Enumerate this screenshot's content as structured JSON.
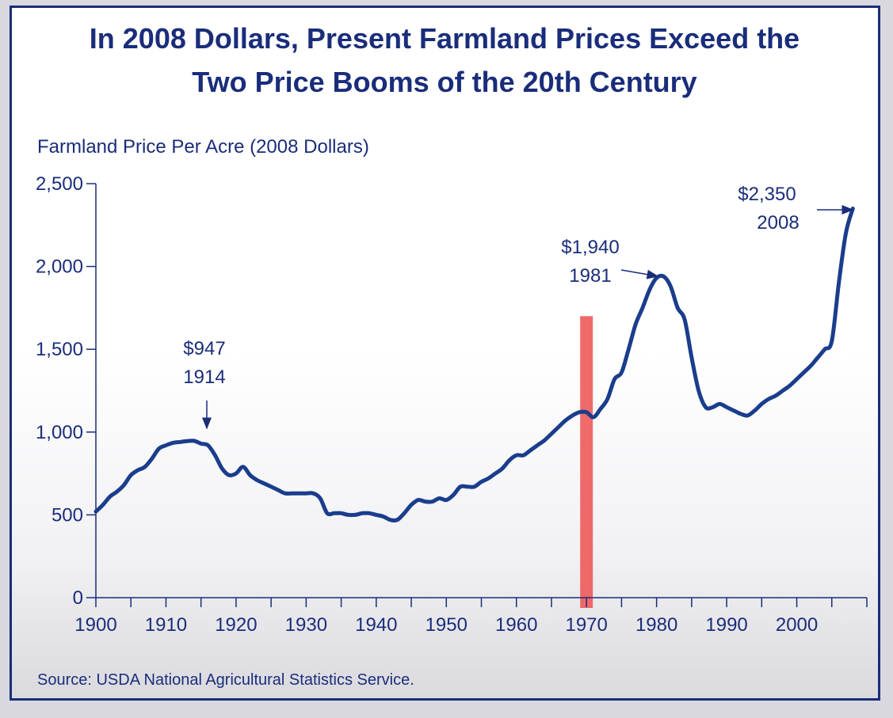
{
  "chart_data": {
    "type": "line",
    "title_line1": "In 2008 Dollars, Present Farmland Prices Exceed the",
    "title_line2": "Two Price Booms of the 20th Century",
    "ylabel": "Farmland Price Per Acre (2008 Dollars)",
    "xlabel": "",
    "source": "Source: USDA National Agricultural Statistics Service.",
    "xlim": [
      1900,
      2010
    ],
    "ylim": [
      0,
      2500
    ],
    "yticks": [
      0,
      500,
      1000,
      1500,
      2000,
      2500
    ],
    "ytick_labels": [
      "0",
      "500",
      "1,000",
      "1,500",
      "2,000",
      "2,500"
    ],
    "xticks": [
      1900,
      1910,
      1920,
      1930,
      1940,
      1950,
      1960,
      1970,
      1980,
      1990,
      2000
    ],
    "xtick_labels": [
      "1900",
      "1910",
      "1920",
      "1930",
      "1940",
      "1950",
      "1960",
      "1970",
      "1980",
      "1990",
      "2000"
    ],
    "grid": false,
    "line_color": "#1a3d8c",
    "series": [
      {
        "name": "",
        "x": [
          1900,
          1901,
          1902,
          1903,
          1904,
          1905,
          1906,
          1907,
          1908,
          1909,
          1910,
          1911,
          1912,
          1913,
          1914,
          1915,
          1916,
          1917,
          1918,
          1919,
          1920,
          1921,
          1922,
          1923,
          1924,
          1925,
          1926,
          1927,
          1928,
          1929,
          1930,
          1931,
          1932,
          1933,
          1934,
          1935,
          1936,
          1937,
          1938,
          1939,
          1940,
          1941,
          1942,
          1943,
          1944,
          1945,
          1946,
          1947,
          1948,
          1949,
          1950,
          1951,
          1952,
          1953,
          1954,
          1955,
          1956,
          1957,
          1958,
          1959,
          1960,
          1961,
          1962,
          1963,
          1964,
          1965,
          1966,
          1967,
          1968,
          1969,
          1970,
          1971,
          1972,
          1973,
          1974,
          1975,
          1976,
          1977,
          1978,
          1979,
          1980,
          1981,
          1982,
          1983,
          1984,
          1985,
          1986,
          1987,
          1988,
          1989,
          1990,
          1991,
          1992,
          1993,
          1994,
          1995,
          1996,
          1997,
          1998,
          1999,
          2000,
          2001,
          2002,
          2003,
          2004,
          2005,
          2006,
          2007,
          2008
        ],
        "y": [
          520,
          560,
          610,
          640,
          680,
          740,
          770,
          790,
          840,
          900,
          920,
          935,
          940,
          945,
          947,
          930,
          920,
          860,
          780,
          740,
          750,
          790,
          740,
          710,
          690,
          670,
          650,
          630,
          630,
          630,
          630,
          630,
          600,
          510,
          510,
          510,
          500,
          500,
          510,
          510,
          500,
          490,
          470,
          470,
          510,
          560,
          590,
          580,
          580,
          600,
          590,
          620,
          670,
          670,
          670,
          700,
          720,
          750,
          780,
          830,
          860,
          860,
          890,
          920,
          950,
          990,
          1030,
          1070,
          1100,
          1120,
          1120,
          1090,
          1140,
          1200,
          1320,
          1360,
          1500,
          1650,
          1750,
          1860,
          1930,
          1940,
          1880,
          1750,
          1680,
          1450,
          1250,
          1150,
          1150,
          1170,
          1150,
          1130,
          1110,
          1100,
          1130,
          1170,
          1200,
          1220,
          1250,
          1280,
          1320,
          1360,
          1400,
          1450,
          1500,
          1550,
          1900,
          2200,
          2350
        ]
      }
    ],
    "annotations": [
      {
        "value": "$947",
        "year": "1914"
      },
      {
        "value": "$1,940",
        "year": "1981"
      },
      {
        "value": "$2,350",
        "year": "2008"
      }
    ],
    "highlight": {
      "x": 1970,
      "color": "#ee5a5a"
    }
  }
}
